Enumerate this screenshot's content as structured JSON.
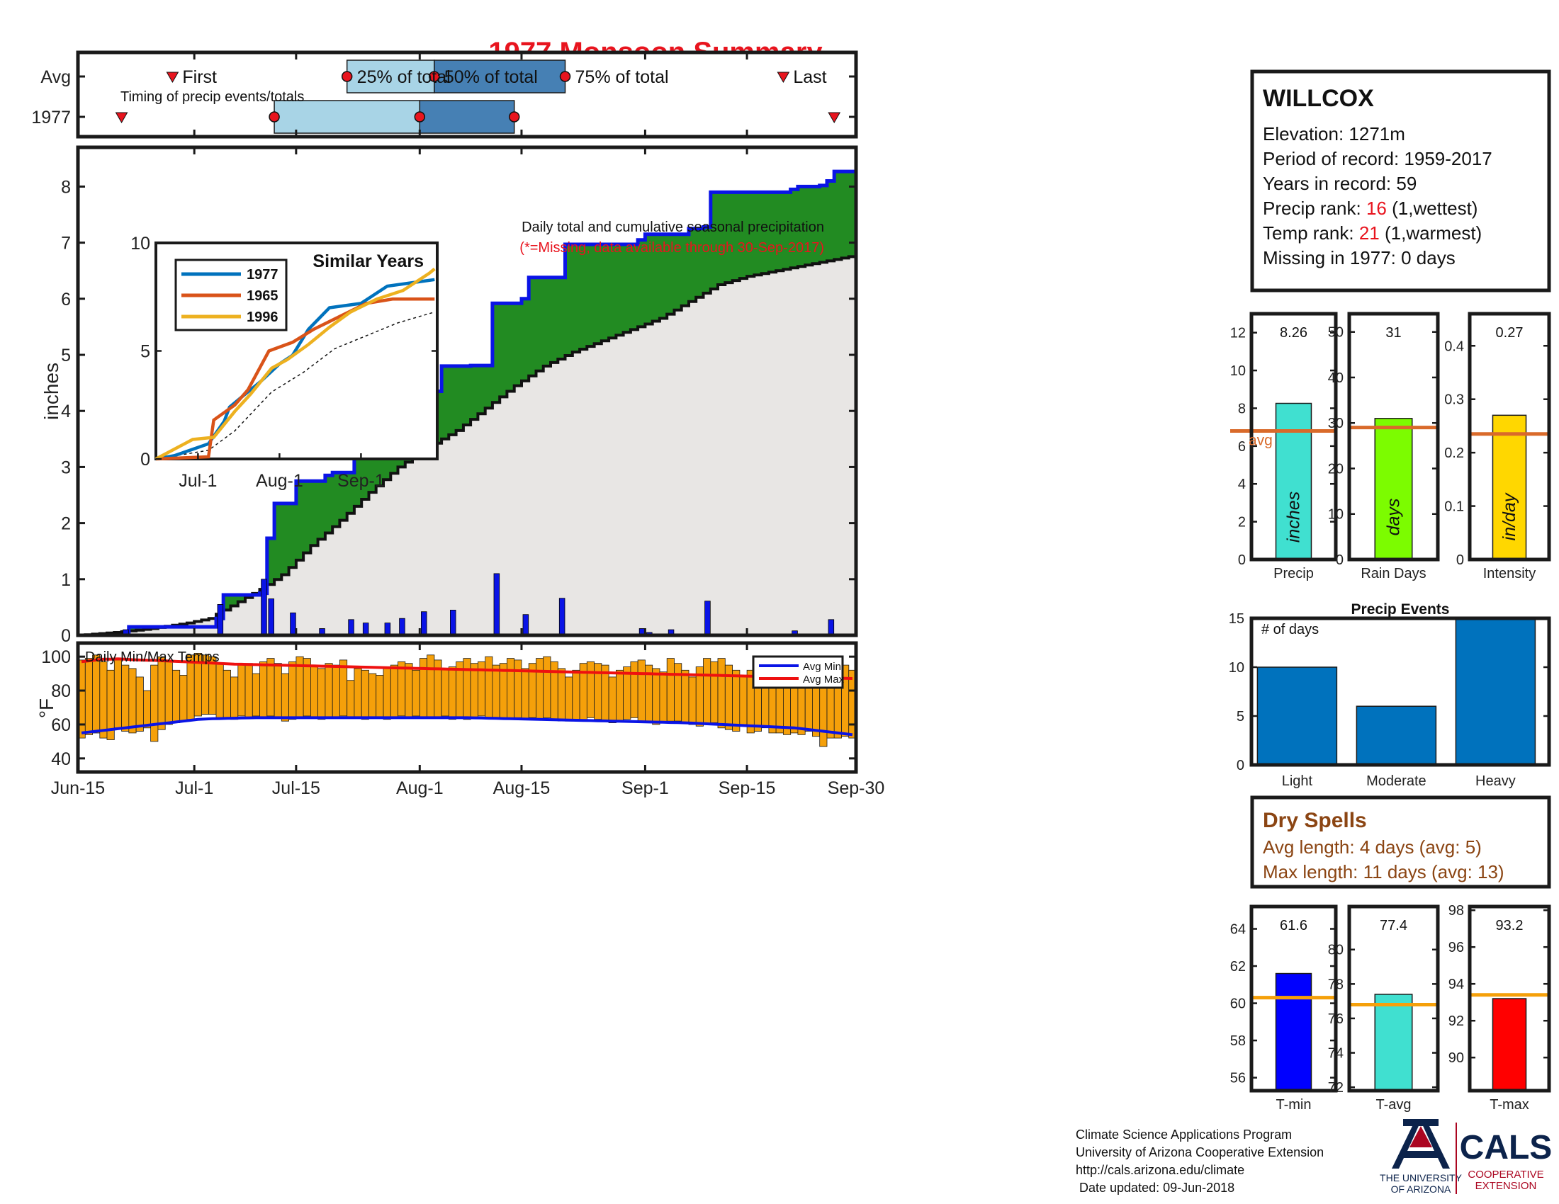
{
  "page": {
    "title": "1977 Monsoon Summary",
    "footer_lines": [
      "Climate Science Applications Program",
      "University of Arizona Cooperative Extension",
      "http://cals.arizona.edu/climate",
      " Date updated: 09-Jun-2018"
    ],
    "logo_ua": {
      "text1": "THE UNIVERSITY",
      "text2": "OF ARIZONA"
    },
    "logo_cals": {
      "text1": "CALS",
      "text2": "COOPERATIVE",
      "text3": "EXTENSION"
    }
  },
  "colors": {
    "title_red": "#e8141e",
    "blue_line": "#0a14e6",
    "cumulative_fill": "#228b22",
    "avg_fill": "#e8e6e4",
    "light_blue": "#a8d4e6",
    "steel_blue": "#4680b4",
    "orange": "#f5a00a",
    "red_line": "#ee1010",
    "avg_orange": "#d96a2a",
    "ua_blue": "#0c234b",
    "ua_red": "#ab0520",
    "brown": "#8b4513"
  },
  "station": {
    "name": "WILLCOX",
    "lines": [
      {
        "label": "Elevation: 1271m",
        "value": "",
        "suffix": ""
      },
      {
        "label": "Period of record: 1959-2017",
        "value": "",
        "suffix": ""
      },
      {
        "label": "Years in record: 59",
        "value": "",
        "suffix": ""
      },
      {
        "label": "Precip rank: ",
        "value": "16",
        "suffix": " (1,wettest)"
      },
      {
        "label": "Temp rank: ",
        "value": "21",
        "suffix": " (1,warmest)"
      },
      {
        "label": "Missing in 1977: 0 days",
        "value": "",
        "suffix": ""
      }
    ]
  },
  "dry_spells": {
    "title": "Dry Spells",
    "lines": [
      "Avg length: 4 days (avg: 5)",
      "Max length: 11 days (avg: 13)"
    ]
  },
  "chart_data": [
    {
      "id": "timing",
      "type": "bar",
      "title": "Timing of precip events/totals",
      "rows": [
        "Avg",
        "1977"
      ],
      "avg": {
        "first": "Jun-28",
        "p25": "Jul-22",
        "p50": "Aug-3",
        "p75": "Aug-21",
        "last": "Sep-20"
      },
      "year": {
        "first": "Jun-21",
        "p25": "Jul-12",
        "p50": "Aug-1",
        "p75": "Aug-14",
        "last": "Sep-27"
      },
      "labels": {
        "first": "First",
        "p25": "25% of total",
        "p50": "50% of total",
        "p75": "75% of total",
        "last": "Last"
      }
    },
    {
      "id": "precip",
      "type": "area",
      "title": "Daily total and cumulative seasonal precipitation",
      "subtitle": "(*=Missing, data available through 30-Sep-2017)",
      "ylabel": "inches",
      "ylim": [
        0,
        8.7
      ],
      "yticks": [
        0,
        1,
        2,
        3,
        4,
        5,
        6,
        7,
        8
      ],
      "xticks": [
        "Jun-15",
        "Jul-1",
        "Jul-15",
        "Aug-1",
        "Aug-15",
        "Sep-1",
        "Sep-15",
        "Sep-30"
      ],
      "cumulative_steps": [
        [
          0,
          0
        ],
        [
          7,
          0.15
        ],
        [
          19,
          0.3
        ],
        [
          20,
          0.72
        ],
        [
          25,
          0.75
        ],
        [
          26,
          1.73
        ],
        [
          27,
          2.35
        ],
        [
          30,
          2.75
        ],
        [
          34,
          2.85
        ],
        [
          35,
          2.9
        ],
        [
          38,
          3.17
        ],
        [
          40,
          3.38
        ],
        [
          43,
          3.58
        ],
        [
          44,
          3.78
        ],
        [
          45,
          3.92
        ],
        [
          47,
          4.35
        ],
        [
          50,
          4.8
        ],
        [
          54,
          4.81
        ],
        [
          57,
          5.92
        ],
        [
          61,
          6.0
        ],
        [
          62,
          6.38
        ],
        [
          66,
          6.38
        ],
        [
          67,
          6.97
        ],
        [
          76,
          6.97
        ],
        [
          77,
          7.05
        ],
        [
          78,
          7.15
        ],
        [
          84,
          7.25
        ],
        [
          86,
          7.28
        ],
        [
          87,
          7.9
        ],
        [
          98,
          7.95
        ],
        [
          99,
          8.0
        ],
        [
          102,
          8.02
        ],
        [
          103,
          8.1
        ],
        [
          104,
          8.27
        ],
        [
          106,
          8.27
        ]
      ],
      "average_curve": [
        [
          0,
          0
        ],
        [
          5,
          0.05
        ],
        [
          10,
          0.12
        ],
        [
          15,
          0.22
        ],
        [
          18,
          0.3
        ],
        [
          20,
          0.45
        ],
        [
          25,
          0.82
        ],
        [
          28,
          1.08
        ],
        [
          32,
          1.6
        ],
        [
          36,
          2.05
        ],
        [
          40,
          2.55
        ],
        [
          44,
          3.0
        ],
        [
          48,
          3.35
        ],
        [
          52,
          3.65
        ],
        [
          56,
          4.05
        ],
        [
          60,
          4.45
        ],
        [
          64,
          4.8
        ],
        [
          68,
          5.05
        ],
        [
          72,
          5.25
        ],
        [
          76,
          5.45
        ],
        [
          80,
          5.65
        ],
        [
          84,
          5.95
        ],
        [
          88,
          6.25
        ],
        [
          92,
          6.4
        ],
        [
          96,
          6.5
        ],
        [
          100,
          6.6
        ],
        [
          104,
          6.7
        ],
        [
          106,
          6.75
        ]
      ],
      "daily_bars": [
        [
          6,
          0.1
        ],
        [
          19,
          0.55
        ],
        [
          25,
          1.0
        ],
        [
          26,
          0.65
        ],
        [
          29,
          0.4
        ],
        [
          33,
          0.12
        ],
        [
          37,
          0.28
        ],
        [
          39,
          0.22
        ],
        [
          42,
          0.22
        ],
        [
          44,
          0.3
        ],
        [
          47,
          0.42
        ],
        [
          51,
          0.45
        ],
        [
          57,
          1.1
        ],
        [
          61,
          0.37
        ],
        [
          66,
          0.66
        ],
        [
          77,
          0.12
        ],
        [
          78,
          0.05
        ],
        [
          81,
          0.1
        ],
        [
          86,
          0.61
        ],
        [
          98,
          0.08
        ],
        [
          103,
          0.28
        ]
      ],
      "missing_days": []
    },
    {
      "id": "similar_years",
      "type": "line",
      "title": "Similar Years",
      "ylim": [
        0,
        10
      ],
      "yticks": [
        0,
        5,
        10
      ],
      "xticks": [
        "Jul-1",
        "Aug-1",
        "Sep-1"
      ],
      "series": [
        {
          "name": "1977",
          "color": "#0072bd",
          "points": [
            [
              0,
              0
            ],
            [
              7,
              0.15
            ],
            [
              20,
              0.7
            ],
            [
              26,
              1.75
            ],
            [
              28,
              2.4
            ],
            [
              33,
              2.9
            ],
            [
              40,
              3.6
            ],
            [
              47,
              4.4
            ],
            [
              52,
              4.8
            ],
            [
              58,
              6.0
            ],
            [
              66,
              7.0
            ],
            [
              78,
              7.2
            ],
            [
              88,
              8.0
            ],
            [
              100,
              8.2
            ],
            [
              106,
              8.3
            ]
          ]
        },
        {
          "name": "1965",
          "color": "#d95319",
          "points": [
            [
              0,
              0
            ],
            [
              20,
              0.1
            ],
            [
              22,
              1.8
            ],
            [
              30,
              2.5
            ],
            [
              35,
              3.2
            ],
            [
              43,
              5.0
            ],
            [
              52,
              5.4
            ],
            [
              60,
              6.0
            ],
            [
              70,
              6.6
            ],
            [
              80,
              7.2
            ],
            [
              90,
              7.4
            ],
            [
              106,
              7.4
            ]
          ]
        },
        {
          "name": "1996",
          "color": "#edb120",
          "points": [
            [
              0,
              0
            ],
            [
              14,
              0.9
            ],
            [
              22,
              1.0
            ],
            [
              30,
              2.2
            ],
            [
              36,
              3.0
            ],
            [
              44,
              4.2
            ],
            [
              50,
              4.6
            ],
            [
              58,
              5.3
            ],
            [
              66,
              6.1
            ],
            [
              74,
              6.8
            ],
            [
              84,
              7.4
            ],
            [
              94,
              7.8
            ],
            [
              104,
              8.6
            ],
            [
              106,
              8.8
            ]
          ]
        }
      ],
      "average": [
        [
          0,
          0
        ],
        [
          20,
          0.4
        ],
        [
          30,
          1.3
        ],
        [
          44,
          3.1
        ],
        [
          56,
          4.0
        ],
        [
          68,
          5.1
        ],
        [
          80,
          5.7
        ],
        [
          92,
          6.3
        ],
        [
          106,
          6.8
        ]
      ]
    },
    {
      "id": "temps",
      "type": "bar",
      "title": "Daily Min/Max Temps",
      "ylabel": "°F",
      "ylim": [
        32,
        108
      ],
      "yticks": [
        40,
        60,
        80,
        100
      ],
      "legend": [
        "Avg Min",
        "Avg Max"
      ],
      "tmax": [
        98,
        99,
        101,
        97,
        92,
        98,
        95,
        93,
        88,
        80,
        95,
        100,
        97,
        92,
        89,
        101,
        102,
        101,
        100,
        96,
        92,
        88,
        95,
        96,
        90,
        97,
        99,
        96,
        90,
        97,
        100,
        99,
        95,
        93,
        96,
        95,
        98,
        86,
        93,
        92,
        90,
        89,
        94,
        95,
        97,
        96,
        92,
        99,
        101,
        98,
        93,
        94,
        97,
        99,
        96,
        97,
        100,
        95,
        96,
        99,
        98,
        93,
        96,
        99,
        100,
        97,
        93,
        88,
        92,
        96,
        97,
        96,
        95,
        88,
        92,
        94,
        97,
        98,
        95,
        93,
        91,
        99,
        96,
        92,
        88,
        94,
        99,
        97,
        99,
        95,
        92,
        89,
        92,
        94,
        87,
        95,
        92,
        90,
        91,
        93,
        87,
        82,
        92,
        88,
        91,
        95,
        92
      ],
      "tmin": [
        52,
        54,
        55,
        52,
        51,
        58,
        56,
        55,
        56,
        58,
        50,
        57,
        60,
        61,
        62,
        63,
        65,
        66,
        66,
        64,
        64,
        63,
        65,
        64,
        65,
        64,
        65,
        64,
        62,
        63,
        64,
        65,
        64,
        63,
        64,
        64,
        65,
        64,
        64,
        63,
        64,
        64,
        63,
        64,
        65,
        64,
        65,
        64,
        64,
        64,
        65,
        63,
        64,
        63,
        64,
        65,
        64,
        64,
        63,
        63,
        64,
        63,
        64,
        63,
        64,
        63,
        62,
        62,
        63,
        62,
        64,
        63,
        62,
        61,
        62,
        63,
        64,
        61,
        62,
        60,
        61,
        62,
        62,
        61,
        60,
        59,
        60,
        61,
        58,
        57,
        56,
        60,
        55,
        56,
        58,
        55,
        55,
        54,
        55,
        54,
        56,
        53,
        47,
        52,
        52,
        53,
        52
      ],
      "avg_max": [
        97,
        97.5,
        98,
        98.5,
        98.5,
        98.7,
        98.5,
        98.2,
        98,
        97.9,
        97.8,
        97.6,
        97.4,
        97.2,
        97,
        96.8,
        96.6,
        96.4,
        96.2,
        96,
        95.8,
        95.6,
        95.5,
        95.4,
        95.3,
        95.2,
        95.1,
        95,
        94.9,
        94.8,
        94.7,
        94.6,
        94.5,
        94.4,
        94.3,
        94.2,
        94.1,
        94,
        93.9,
        93.8,
        93.7,
        93.6,
        93.5,
        93.4,
        93.3,
        93.2,
        93.1,
        93,
        92.9,
        92.8,
        92.7,
        92.6,
        92.5,
        92.4,
        92.3,
        92.2,
        92.1,
        92,
        91.9,
        91.8,
        91.7,
        91.6,
        91.5,
        91.4,
        91.3,
        91.2,
        91.1,
        91,
        90.9,
        90.8,
        90.7,
        90.6,
        90.5,
        90.4,
        90.3,
        90.2,
        90.1,
        90,
        89.9,
        89.8,
        89.7,
        89.6,
        89.5,
        89.4,
        89.3,
        89.2,
        89.1,
        89,
        88.9,
        88.8,
        88.7,
        88.6,
        88.5,
        88.4,
        88.3,
        88.2,
        88.1,
        88,
        87.9,
        87.8,
        87.7,
        87.6,
        87.5,
        87.4,
        87.3,
        87.2,
        87.1
      ],
      "avg_min": [
        55,
        55.5,
        56,
        56.5,
        57,
        57.5,
        58,
        58.5,
        59,
        59.5,
        60,
        60.5,
        61,
        61.5,
        62,
        62.5,
        63,
        63.2,
        63.4,
        63.5,
        63.6,
        63.7,
        63.8,
        63.9,
        64,
        64,
        64,
        64,
        64,
        64,
        64,
        64,
        64,
        64,
        64,
        64,
        64,
        64,
        64,
        64,
        64,
        64,
        64,
        64,
        64,
        64,
        64,
        64,
        64,
        64,
        64,
        64,
        64,
        64,
        63.9,
        63.8,
        63.7,
        63.6,
        63.5,
        63.4,
        63.3,
        63.2,
        63.1,
        63,
        62.9,
        62.8,
        62.7,
        62.6,
        62.5,
        62.4,
        62.3,
        62.2,
        62.1,
        62,
        61.9,
        61.8,
        61.7,
        61.6,
        61.5,
        61.4,
        61.3,
        61.2,
        61.1,
        61,
        60.8,
        60.6,
        60.4,
        60.2,
        60,
        59.8,
        59.6,
        59.4,
        59.2,
        59,
        58.8,
        58.6,
        58.4,
        58.2,
        58,
        57.5,
        57,
        56.5,
        56,
        55.5,
        55,
        54.5,
        54
      ]
    },
    {
      "id": "precip_precip",
      "type": "bar",
      "categories": [
        "Precip"
      ],
      "values": [
        8.26
      ],
      "value_label": "8.26",
      "unit_label": "inches",
      "avg": 6.8,
      "avg_label": "avg",
      "ylim": [
        0,
        13
      ],
      "yticks": [
        0,
        2,
        4,
        6,
        8,
        10,
        12
      ],
      "color": "#40e0d0"
    },
    {
      "id": "rain_days",
      "type": "bar",
      "categories": [
        "Rain Days"
      ],
      "values": [
        31
      ],
      "value_label": "31",
      "unit_label": "days",
      "avg": 29,
      "ylim": [
        0,
        54
      ],
      "yticks": [
        0,
        10,
        20,
        30,
        40,
        50
      ],
      "color": "#7cfc00"
    },
    {
      "id": "intensity",
      "type": "bar",
      "categories": [
        "Intensity"
      ],
      "values": [
        0.27
      ],
      "value_label": "0.27",
      "unit_label": "in/day",
      "avg": 0.235,
      "ylim": [
        0,
        0.46
      ],
      "yticks": [
        0,
        0.1,
        0.2,
        0.3,
        0.4
      ],
      "color": "#ffd700"
    },
    {
      "id": "precip_events",
      "type": "bar",
      "title": "Precip Events",
      "note": "# of days",
      "categories": [
        "Light",
        "Moderate",
        "Heavy"
      ],
      "values": [
        10,
        6,
        15
      ],
      "ylim": [
        0,
        15
      ],
      "yticks": [
        0,
        5,
        10,
        15
      ],
      "color": "#0072bd"
    },
    {
      "id": "t_min",
      "type": "bar",
      "categories": [
        "T-min"
      ],
      "values": [
        61.6
      ],
      "value_label": "61.6",
      "avg": 60.3,
      "ylim": [
        55.3,
        65.2
      ],
      "yticks": [
        56,
        58,
        60,
        62,
        64
      ],
      "color": "#0000ff"
    },
    {
      "id": "t_avg",
      "type": "bar",
      "categories": [
        "T-avg"
      ],
      "values": [
        77.4
      ],
      "value_label": "77.4",
      "avg": 76.8,
      "ylim": [
        71.8,
        82.5
      ],
      "yticks": [
        72,
        74,
        76,
        78,
        80
      ],
      "color": "#40e0d0"
    },
    {
      "id": "t_max",
      "type": "bar",
      "categories": [
        "T-max"
      ],
      "values": [
        93.2
      ],
      "value_label": "93.2",
      "avg": 93.4,
      "ylim": [
        88.2,
        98.2
      ],
      "yticks": [
        90,
        92,
        94,
        96,
        98
      ],
      "color": "#ff0000"
    }
  ]
}
